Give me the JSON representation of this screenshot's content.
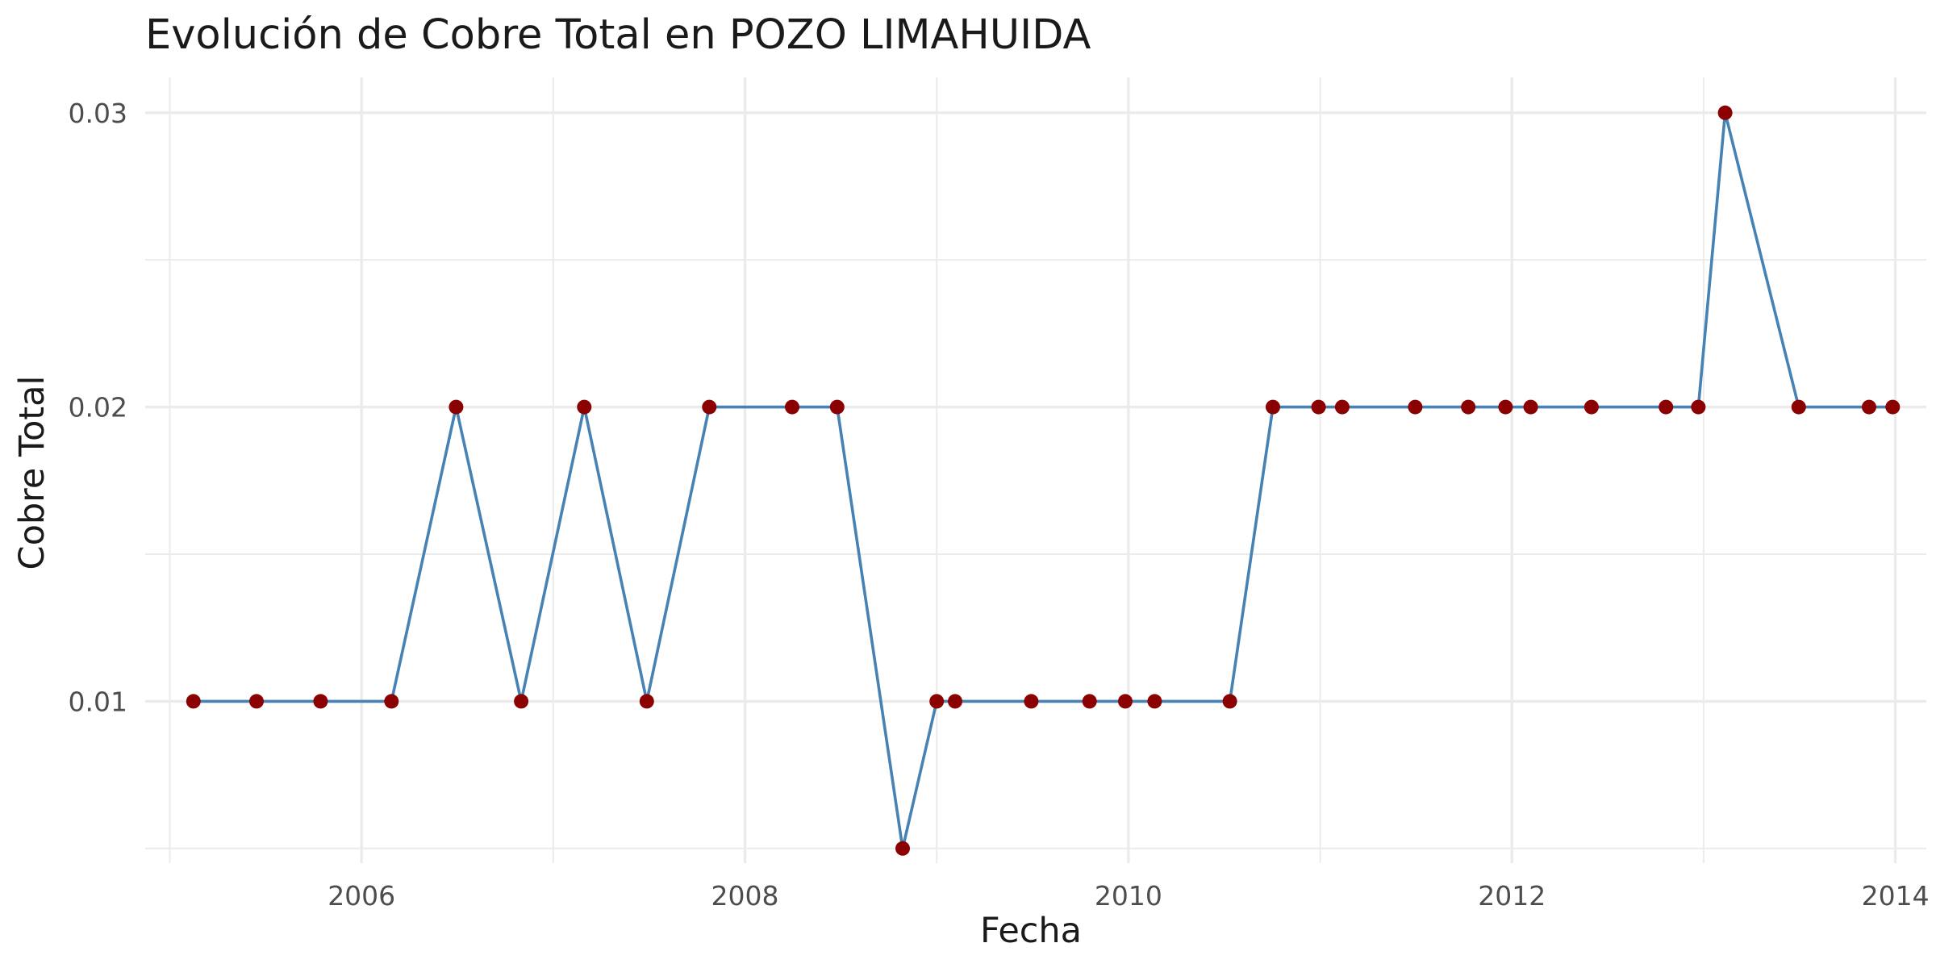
{
  "chart_data": {
    "type": "line",
    "title": "Evolución de Cobre Total en POZO LIMAHUIDA",
    "xlabel": "Fecha",
    "ylabel": "Cobre Total",
    "x_ticks": [
      "2006",
      "2008",
      "2010",
      "2012",
      "2014"
    ],
    "y_ticks": [
      "0.01",
      "0.02",
      "0.03"
    ],
    "xlim": [
      "2004-11-15",
      "2014-03-01"
    ],
    "ylim": [
      0.0045,
      0.0312
    ],
    "grid": true,
    "colors": {
      "line": "#4682b4",
      "points": "#8b0000"
    },
    "x": [
      "2005-02-15",
      "2005-06-15",
      "2005-10-15",
      "2006-02-27",
      "2006-06-30",
      "2006-11-01",
      "2007-03-01",
      "2007-06-28",
      "2007-10-25",
      "2008-03-31",
      "2008-06-25",
      "2008-10-28",
      "2009-01-01",
      "2009-02-05",
      "2009-06-30",
      "2009-10-19",
      "2009-12-26",
      "2010-02-20",
      "2010-07-13",
      "2010-10-03",
      "2010-12-29",
      "2011-02-12",
      "2011-07-01",
      "2011-10-10",
      "2011-12-20",
      "2012-02-06",
      "2012-06-01",
      "2012-10-21",
      "2012-12-22",
      "2013-02-11",
      "2013-07-01",
      "2013-11-12",
      "2013-12-27"
    ],
    "values": [
      0.01,
      0.01,
      0.01,
      0.01,
      0.02,
      0.01,
      0.02,
      0.01,
      0.02,
      0.02,
      0.02,
      0.005,
      0.01,
      0.01,
      0.01,
      0.01,
      0.01,
      0.01,
      0.01,
      0.02,
      0.02,
      0.02,
      0.02,
      0.02,
      0.02,
      0.02,
      0.02,
      0.02,
      0.02,
      0.03,
      0.02,
      0.02,
      0.02
    ]
  }
}
